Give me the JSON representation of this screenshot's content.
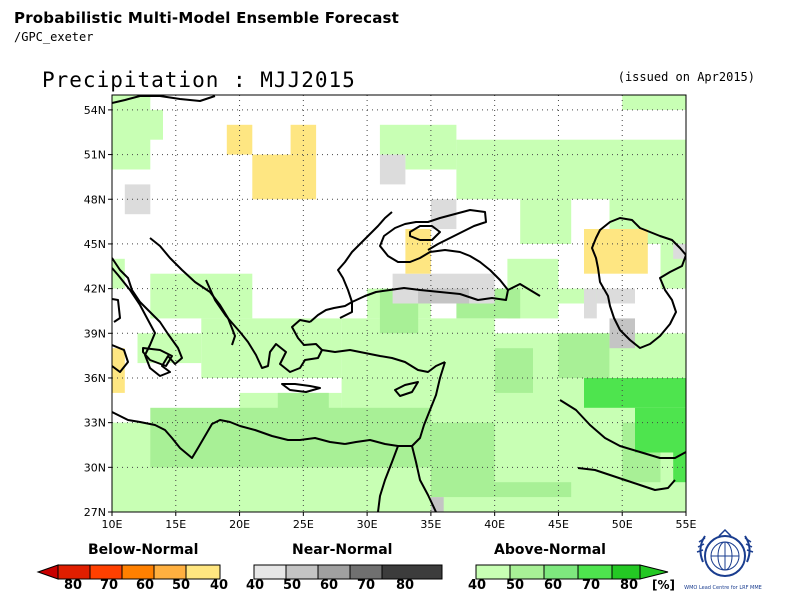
{
  "header": {
    "title": "Probabilistic Multi-Model Ensemble Forecast",
    "subtitle": "/GPC_exeter",
    "map_title": "Precipitation : MJJ2015",
    "issued": "(issued on Apr2015)"
  },
  "map": {
    "lon_range": [
      10,
      55
    ],
    "lat_range": [
      27,
      55
    ],
    "lat_ticks": [
      "54N",
      "51N",
      "48N",
      "45N",
      "42N",
      "39N",
      "36N",
      "33N",
      "30N",
      "27N"
    ],
    "lon_ticks": [
      "10E",
      "15E",
      "20E",
      "25E",
      "30E",
      "35E",
      "40E",
      "45E",
      "50E",
      "55E"
    ],
    "colors": {
      "below_40": "#fee682",
      "near_40": "#dcdcdc",
      "near_50": "#c4c4c4",
      "above_40": "#c8ffb4",
      "above_50": "#a8f096",
      "above_70": "#4ee44e"
    }
  },
  "legend": {
    "below_title": "Below-Normal",
    "near_title": "Near-Normal",
    "above_title": "Above-Normal",
    "below_values": [
      "80",
      "70",
      "60",
      "50",
      "40"
    ],
    "near_values": [
      "40",
      "50",
      "60",
      "70",
      "80"
    ],
    "above_values": [
      "40",
      "50",
      "60",
      "70",
      "80"
    ],
    "unit": "[%]",
    "below_colors": [
      "#e01e00",
      "#ff4000",
      "#ff8000",
      "#ffb040",
      "#ffe680"
    ],
    "near_colors": [
      "#e6e6e6",
      "#c4c4c4",
      "#a0a0a0",
      "#707070",
      "#3c3c3c"
    ],
    "above_colors": [
      "#c8ffb4",
      "#a8f096",
      "#7ee87e",
      "#4ee44e",
      "#24c824"
    ]
  },
  "logo": {
    "text": "WMO Lead Centre for LRF MME"
  }
}
